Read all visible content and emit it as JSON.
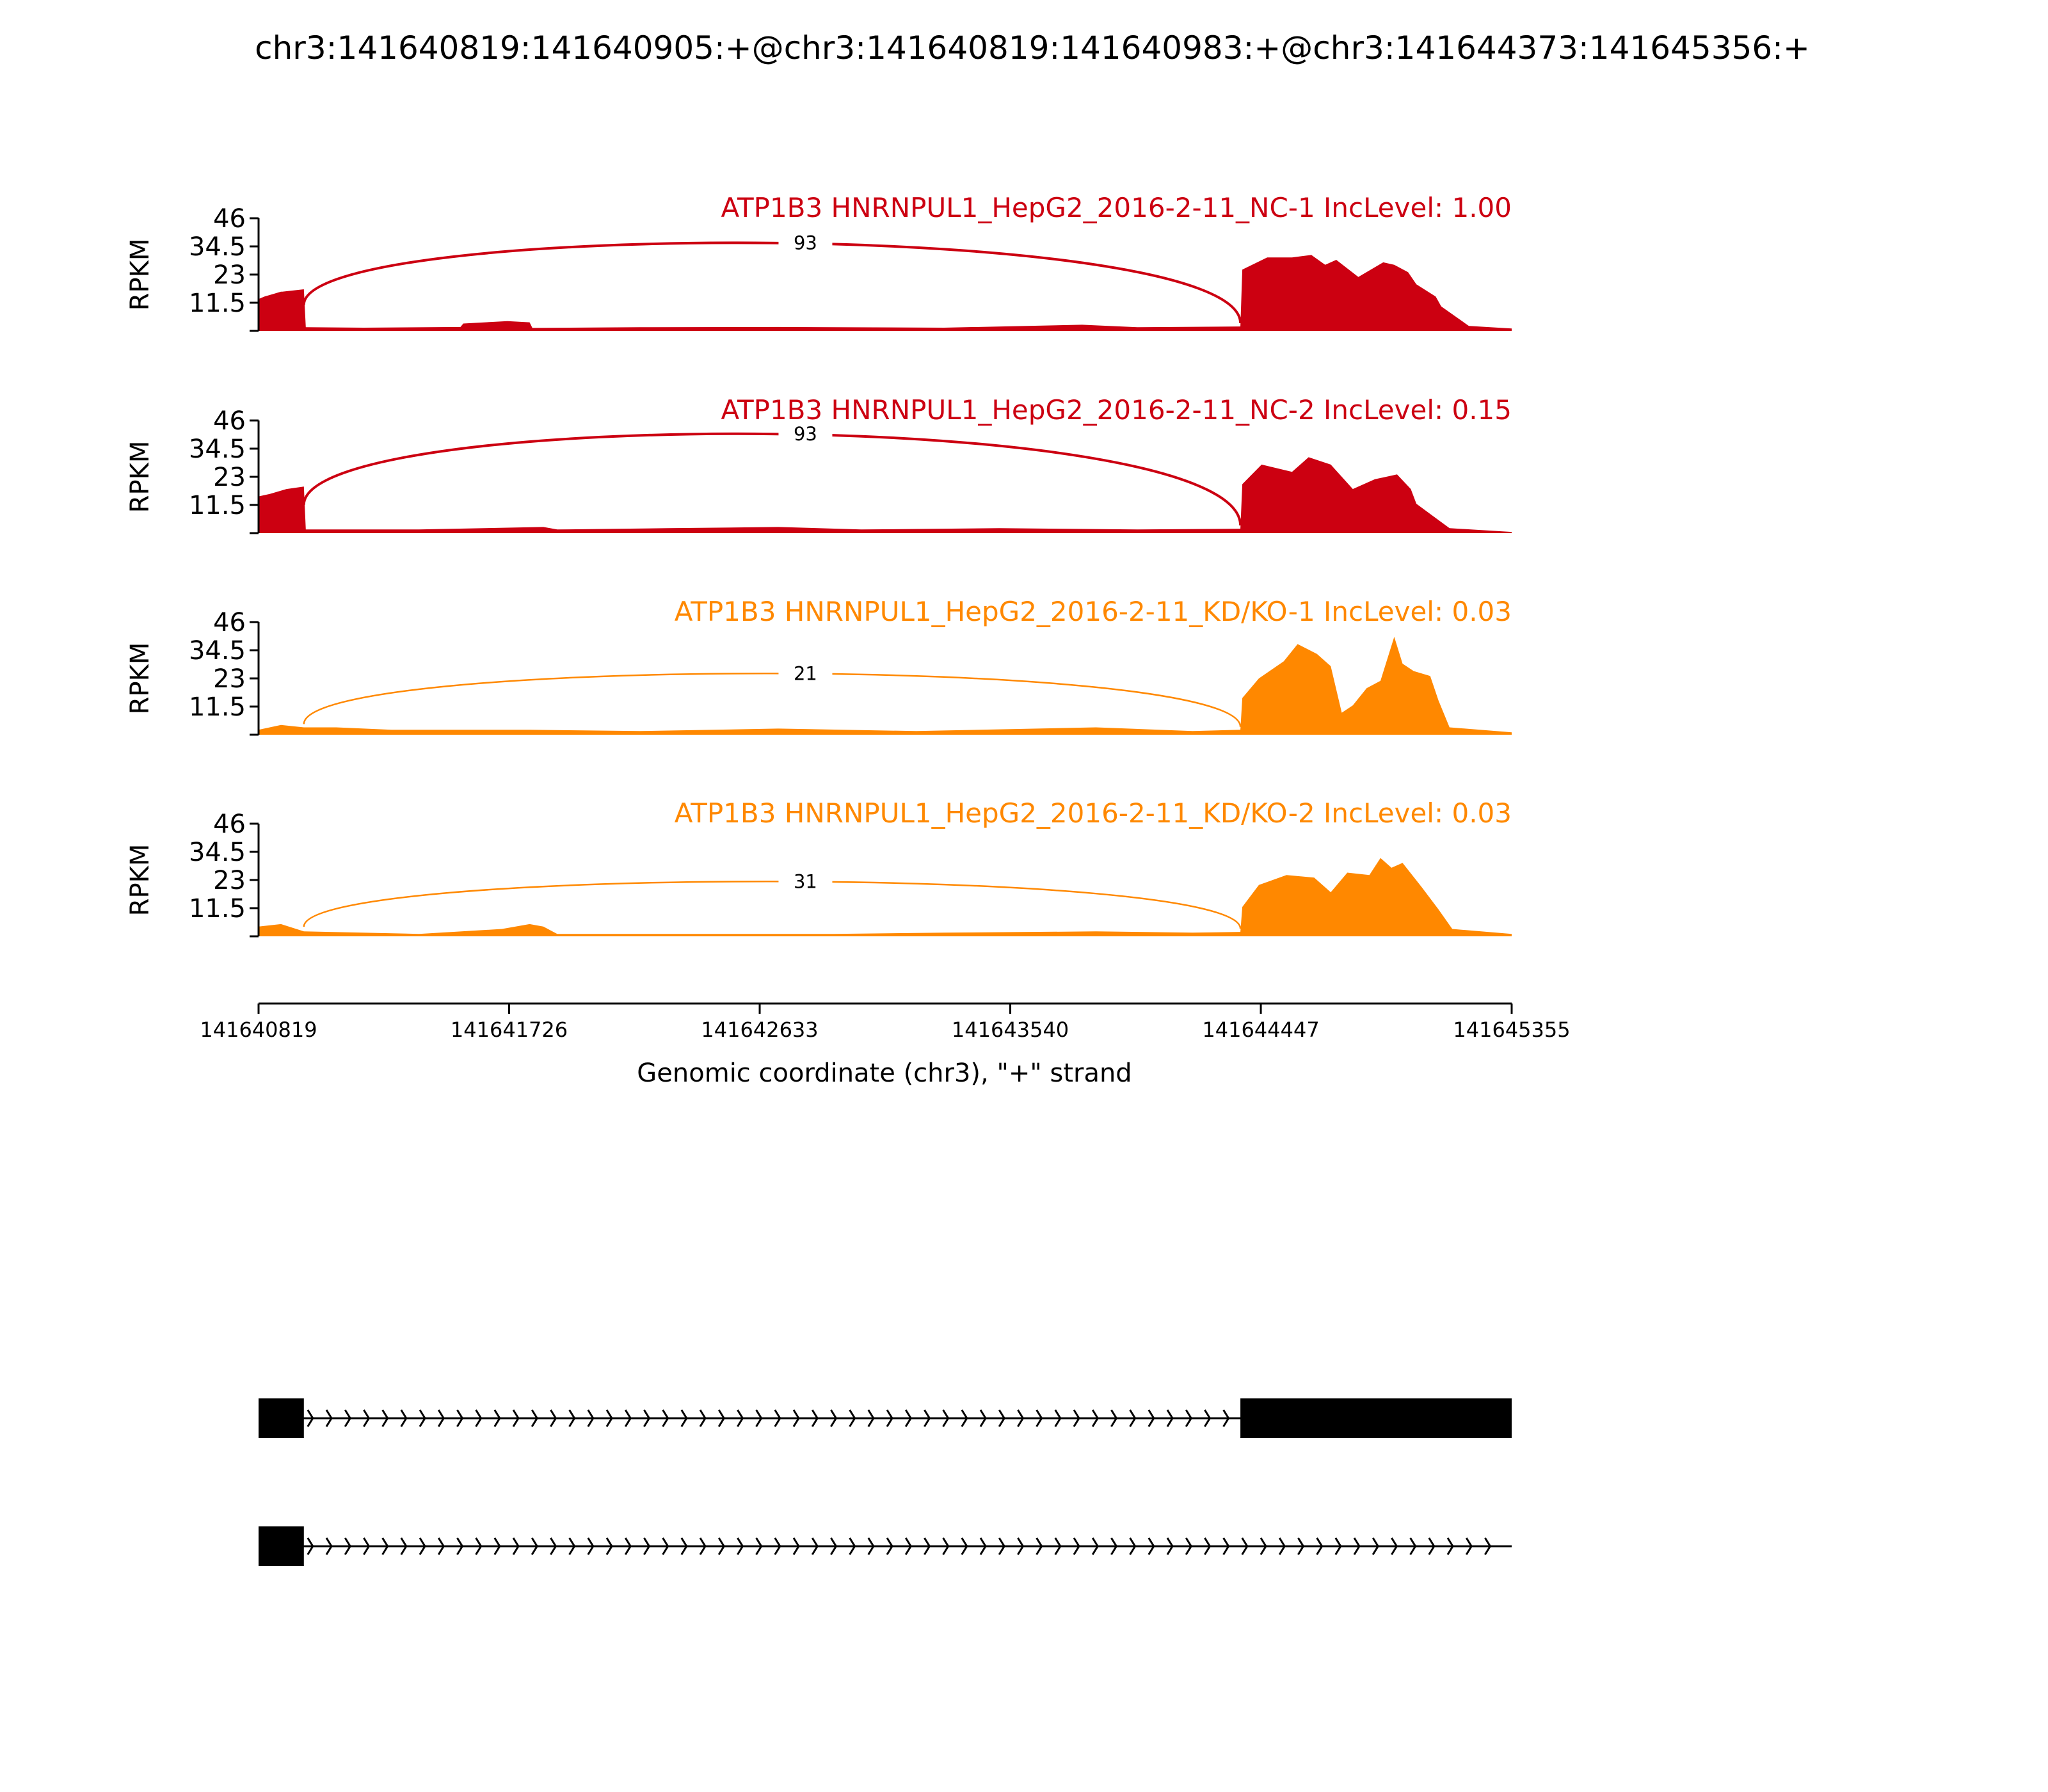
{
  "chart_data": {
    "type": "area",
    "title": "chr3:141640819:141640905:+@chr3:141640819:141640983:+@chr3:141644373:141645356:+",
    "xlabel": "Genomic coordinate (chr3), \"+\" strand",
    "ylabel": "RPKM",
    "xlim": [
      141640819,
      141645355
    ],
    "xticks": [
      "141640819",
      "141641726",
      "141642633",
      "141643540",
      "141644447",
      "141645355"
    ],
    "ylim": [
      0,
      46
    ],
    "yticks": [
      "46",
      "34.5",
      "23",
      "11.5"
    ],
    "colors": {
      "NC": "#cc0011",
      "KD": "#ff8800",
      "gene": "#000000"
    },
    "exons": [
      {
        "start": 141640819,
        "end": 141640983
      },
      {
        "start": 141644373,
        "end": 141645356
      }
    ],
    "series": [
      {
        "name": "ATP1B3 HNRNPUL1_HepG2_2016-2-11_NC-1 IncLevel: 1.00",
        "group": "NC",
        "junction_count": "93",
        "profile": [
          [
            141640819,
            13
          ],
          [
            141640840,
            14
          ],
          [
            141640870,
            15
          ],
          [
            141640900,
            16
          ],
          [
            141640905,
            16
          ],
          [
            141640983,
            17
          ],
          [
            141640990,
            1.5
          ],
          [
            141641200,
            1.3
          ],
          [
            141641550,
            1.6
          ],
          [
            141641560,
            3
          ],
          [
            141641720,
            4
          ],
          [
            141641800,
            3.5
          ],
          [
            141641810,
            1.2
          ],
          [
            141642200,
            1.5
          ],
          [
            141642700,
            1.6
          ],
          [
            141643300,
            1.3
          ],
          [
            141643800,
            2.5
          ],
          [
            141644000,
            1.5
          ],
          [
            141644373,
            1.8
          ],
          [
            141644380,
            25
          ],
          [
            141644470,
            30
          ],
          [
            141644560,
            30
          ],
          [
            141644630,
            31
          ],
          [
            141644680,
            27
          ],
          [
            141644720,
            29
          ],
          [
            141644800,
            22
          ],
          [
            141644890,
            28
          ],
          [
            141644930,
            27
          ],
          [
            141644980,
            24
          ],
          [
            141645010,
            19
          ],
          [
            141645080,
            14
          ],
          [
            141645100,
            10
          ],
          [
            141645150,
            6
          ],
          [
            141645200,
            2
          ],
          [
            141645355,
            1
          ]
        ]
      },
      {
        "name": "ATP1B3 HNRNPUL1_HepG2_2016-2-11_NC-2 IncLevel: 0.15",
        "group": "NC",
        "junction_count": "93",
        "profile": [
          [
            141640819,
            15
          ],
          [
            141640860,
            16
          ],
          [
            141640920,
            18
          ],
          [
            141640983,
            19
          ],
          [
            141640990,
            1.5
          ],
          [
            141641400,
            1.5
          ],
          [
            141641850,
            2.5
          ],
          [
            141641900,
            1.5
          ],
          [
            141642300,
            2
          ],
          [
            141642700,
            2.5
          ],
          [
            141643000,
            1.5
          ],
          [
            141643500,
            2
          ],
          [
            141644000,
            1.5
          ],
          [
            141644373,
            1.8
          ],
          [
            141644380,
            20
          ],
          [
            141644450,
            28
          ],
          [
            141644560,
            25
          ],
          [
            141644620,
            31
          ],
          [
            141644700,
            28
          ],
          [
            141644780,
            18
          ],
          [
            141644860,
            22
          ],
          [
            141644940,
            24
          ],
          [
            141644990,
            18
          ],
          [
            141645010,
            12
          ],
          [
            141645070,
            7
          ],
          [
            141645130,
            2
          ],
          [
            141645355,
            0.5
          ]
        ]
      },
      {
        "name": "ATP1B3 HNRNPUL1_HepG2_2016-2-11_KD/KO-1 IncLevel: 0.03",
        "group": "KD",
        "junction_count": "21",
        "profile": [
          [
            141640819,
            2
          ],
          [
            141640900,
            4
          ],
          [
            141640983,
            3
          ],
          [
            141641100,
            3
          ],
          [
            141641300,
            2
          ],
          [
            141641800,
            2
          ],
          [
            141642200,
            1.5
          ],
          [
            141642700,
            2.5
          ],
          [
            141643200,
            1.5
          ],
          [
            141643850,
            3
          ],
          [
            141644200,
            1.5
          ],
          [
            141644373,
            2
          ],
          [
            141644380,
            15
          ],
          [
            141644440,
            23
          ],
          [
            141644530,
            30
          ],
          [
            141644580,
            37
          ],
          [
            141644650,
            33
          ],
          [
            141644700,
            28
          ],
          [
            141644740,
            9
          ],
          [
            141644780,
            12
          ],
          [
            141644830,
            19
          ],
          [
            141644880,
            22
          ],
          [
            141644930,
            40
          ],
          [
            141644960,
            29
          ],
          [
            141645000,
            26
          ],
          [
            141645060,
            24
          ],
          [
            141645090,
            14
          ],
          [
            141645130,
            3
          ],
          [
            141645355,
            1
          ]
        ]
      },
      {
        "name": "ATP1B3 HNRNPUL1_HepG2_2016-2-11_KD/KO-2 IncLevel: 0.03",
        "group": "KD",
        "junction_count": "31",
        "profile": [
          [
            141640819,
            4
          ],
          [
            141640900,
            5
          ],
          [
            141640983,
            2
          ],
          [
            141641400,
            1
          ],
          [
            141641700,
            3
          ],
          [
            141641800,
            5
          ],
          [
            141641850,
            4
          ],
          [
            141641900,
            1
          ],
          [
            141642400,
            1
          ],
          [
            141642900,
            1
          ],
          [
            141643300,
            1.5
          ],
          [
            141643850,
            2
          ],
          [
            141644200,
            1.5
          ],
          [
            141644373,
            1.8
          ],
          [
            141644380,
            12
          ],
          [
            141644440,
            21
          ],
          [
            141644540,
            25
          ],
          [
            141644640,
            24
          ],
          [
            141644700,
            18
          ],
          [
            141644760,
            26
          ],
          [
            141644840,
            25
          ],
          [
            141644880,
            32
          ],
          [
            141644920,
            28
          ],
          [
            141644960,
            30
          ],
          [
            141645030,
            20
          ],
          [
            141645090,
            11
          ],
          [
            141645140,
            3
          ],
          [
            141645355,
            1
          ]
        ]
      }
    ],
    "transcripts": [
      {
        "exons": [
          [
            141640819,
            141640983
          ],
          [
            141644373,
            141645356
          ]
        ]
      },
      {
        "exons": [
          [
            141640819,
            141640983
          ]
        ]
      }
    ]
  }
}
